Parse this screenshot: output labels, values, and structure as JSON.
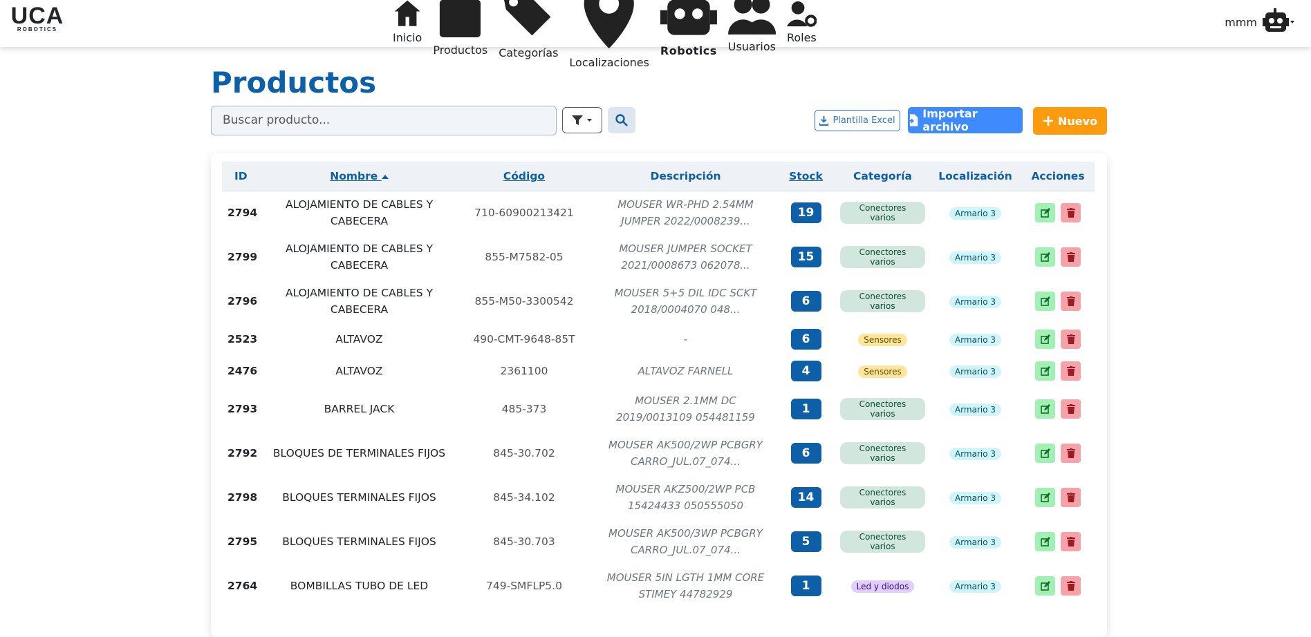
{
  "header": {
    "logo": "UCA",
    "logo_sub": "ROBOTICS",
    "nav": [
      "Inicio",
      "Productos",
      "Categorías",
      "Localizaciones",
      "Robotics",
      "Usuarios",
      "Roles"
    ],
    "user": "mmm"
  },
  "page": {
    "title": "Productos",
    "search_placeholder": "Buscar producto...",
    "buttons": {
      "template": "Plantilla Excel",
      "import": "Importar archivo",
      "new": "Nuevo"
    }
  },
  "table": {
    "columns": [
      "ID",
      "Nombre",
      "Código",
      "Descripción",
      "Stock",
      "Categoría",
      "Localización",
      "Acciones"
    ],
    "rows": [
      [
        "2794",
        "ALOJAMIENTO DE CABLES Y CABECERA",
        "710-60900213421",
        "MOUSER WR-PHD 2.54MM JUMPER 2022/0008239...",
        "19",
        "Conectores varios",
        "Armario 3"
      ],
      [
        "2799",
        "ALOJAMIENTO DE CABLES Y CABECERA",
        "855-M7582-05",
        "MOUSER JUMPER SOCKET 2021/0008673 062078...",
        "15",
        "Conectores varios",
        "Armario 3"
      ],
      [
        "2796",
        "ALOJAMIENTO DE CABLES Y CABECERA",
        "855-M50-3300542",
        "MOUSER 5+5 DIL IDC SCKT 2018/0004070 048...",
        "6",
        "Conectores varios",
        "Armario 3"
      ],
      [
        "2523",
        "ALTAVOZ",
        "490-CMT-9648-85T",
        "-",
        "6",
        "Sensores",
        "Armario 3"
      ],
      [
        "2476",
        "ALTAVOZ",
        "2361100",
        "ALTAVOZ FARNELL",
        "4",
        "Sensores",
        "Armario 3"
      ],
      [
        "2793",
        "BARREL JACK",
        "485-373",
        "MOUSER 2.1MM DC 2019/0013109 054481159",
        "1",
        "Conectores varios",
        "Armario 3"
      ],
      [
        "2792",
        "BLOQUES DE TERMINALES FIJOS",
        "845-30.702",
        "MOUSER AK500/2WP PCBGRY CARRO_JUL.07_074...",
        "6",
        "Conectores varios",
        "Armario 3"
      ],
      [
        "2798",
        "BLOQUES TERMINALES FIJOS",
        "845-34.102",
        "MOUSER AKZ500/2WP PCB 15424433 050555050",
        "14",
        "Conectores varios",
        "Armario 3"
      ],
      [
        "2795",
        "BLOQUES TERMINALES FIJOS",
        "845-30.703",
        "MOUSER AK500/3WP PCBGRY CARRO_JUL.07_074...",
        "5",
        "Conectores varios",
        "Armario 3"
      ],
      [
        "2764",
        "BOMBILLAS TUBO DE LED",
        "749-SMFLP5.0",
        "MOUSER 5IN LGTH 1MM CORE STIMEY 44782929",
        "1",
        "Led y diodos",
        "Armario 3"
      ]
    ]
  }
}
